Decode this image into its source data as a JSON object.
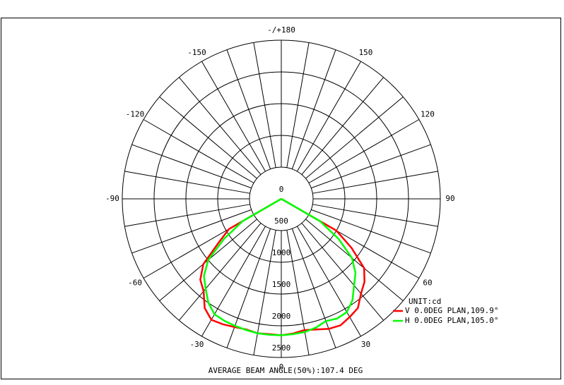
{
  "chart_data": {
    "type": "polar",
    "title": "AVERAGE BEAM ANGLE(50%):107.4 DEG",
    "unit_label": "UNIT:cd",
    "theta": [
      -90,
      -85,
      -80,
      -75,
      -70,
      -65,
      -60,
      -55,
      -50,
      -45,
      -40,
      -35,
      -30,
      -25,
      -20,
      -15,
      -10,
      -5,
      0,
      5,
      10,
      15,
      20,
      25,
      30,
      35,
      40,
      45,
      50,
      55,
      60,
      65,
      70,
      75,
      80,
      85,
      90
    ],
    "series": [
      {
        "name": "V 0.0DEG PLAN,109.9°",
        "color": "#ff0000",
        "values": [
          0,
          0,
          0,
          0,
          0,
          0,
          950,
          1200,
          1600,
          1800,
          1900,
          2100,
          2200,
          2180,
          2150,
          2130,
          2150,
          2140,
          2150,
          2130,
          2100,
          2130,
          2180,
          2200,
          2150,
          2100,
          1950,
          1850,
          1700,
          1350,
          1000,
          0,
          0,
          0,
          0,
          0,
          0
        ]
      },
      {
        "name": "H 0.0DEG PLAN,105.0°",
        "color": "#00ff00",
        "values": [
          0,
          0,
          0,
          0,
          0,
          0,
          700,
          1100,
          1500,
          1720,
          1850,
          2000,
          2100,
          2120,
          2130,
          2140,
          2150,
          2150,
          2150,
          2140,
          2130,
          2100,
          2050,
          2080,
          2060,
          1950,
          1780,
          1650,
          1450,
          1100,
          700,
          0,
          0,
          0,
          0,
          0,
          0
        ]
      }
    ],
    "rlim": [
      0,
      2500
    ],
    "rticks": [
      0,
      500,
      1000,
      1500,
      2000,
      2500
    ],
    "thetaticks": [
      0,
      30,
      60,
      90,
      120,
      150,
      {
        "value": 180,
        "label": "-/+180"
      },
      -150,
      -120,
      -90,
      -60,
      -30
    ]
  }
}
